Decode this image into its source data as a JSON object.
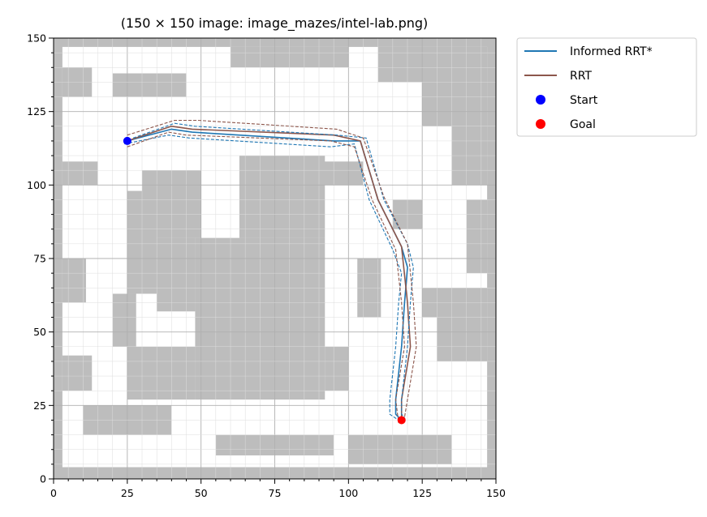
{
  "chart_data": {
    "type": "line",
    "title": "(150 × 150 image: image_mazes/intel-lab.png)",
    "xlim": [
      0,
      150
    ],
    "ylim": [
      0,
      150
    ],
    "x_ticks": [
      0,
      25,
      50,
      75,
      100,
      125,
      150
    ],
    "y_ticks": [
      0,
      25,
      50,
      75,
      100,
      125,
      150
    ],
    "grid": true,
    "legend_placement": "outside-top-right",
    "colors": {
      "informed": "#1f77b4",
      "rrt": "#8c564b",
      "start": "#0000ff",
      "goal": "#ff0000",
      "obstacle": "#bdbdbd",
      "free": "#ffffff"
    },
    "legend": [
      {
        "label": "Informed RRT*",
        "kind": "line",
        "color": "#1f77b4"
      },
      {
        "label": "RRT",
        "kind": "line",
        "color": "#8c564b"
      },
      {
        "label": "Start",
        "kind": "marker",
        "color": "#0000ff"
      },
      {
        "label": "Goal",
        "kind": "marker",
        "color": "#ff0000"
      }
    ],
    "start": {
      "x": 25,
      "y": 115
    },
    "goal": {
      "x": 118,
      "y": 20
    },
    "obstacles": [
      [
        0,
        0,
        3,
        150
      ],
      [
        147,
        0,
        3,
        150
      ],
      [
        0,
        0,
        150,
        4
      ],
      [
        0,
        147,
        150,
        3
      ],
      [
        48,
        27,
        44,
        55
      ],
      [
        63,
        82,
        29,
        28
      ],
      [
        25,
        63,
        10,
        35
      ],
      [
        30,
        82,
        20,
        23
      ],
      [
        35,
        57,
        13,
        25
      ],
      [
        20,
        45,
        8,
        18
      ],
      [
        25,
        27,
        23,
        18
      ],
      [
        85,
        100,
        20,
        8
      ],
      [
        125,
        55,
        22,
        10
      ],
      [
        130,
        40,
        17,
        15
      ],
      [
        125,
        120,
        22,
        27
      ],
      [
        135,
        100,
        12,
        20
      ],
      [
        100,
        5,
        35,
        10
      ],
      [
        55,
        8,
        40,
        7
      ],
      [
        10,
        15,
        30,
        10
      ],
      [
        3,
        100,
        12,
        8
      ],
      [
        3,
        60,
        8,
        15
      ],
      [
        115,
        85,
        10,
        10
      ],
      [
        60,
        140,
        40,
        7
      ],
      [
        20,
        130,
        25,
        8
      ],
      [
        92,
        30,
        8,
        15
      ],
      [
        3,
        130,
        10,
        10
      ],
      [
        110,
        135,
        15,
        12
      ],
      [
        103,
        55,
        8,
        20
      ],
      [
        140,
        70,
        7,
        25
      ],
      [
        3,
        30,
        10,
        12
      ]
    ],
    "series": [
      {
        "name": "Informed RRT*",
        "color": "#1f77b4",
        "style": "solid",
        "points": [
          [
            25,
            115
          ],
          [
            40,
            119
          ],
          [
            47,
            118
          ],
          [
            95,
            115
          ],
          [
            104,
            115
          ],
          [
            110,
            95
          ],
          [
            118,
            79
          ],
          [
            120,
            72
          ],
          [
            119,
            60
          ],
          [
            118,
            45
          ],
          [
            116,
            27
          ],
          [
            116,
            22
          ],
          [
            118,
            20
          ]
        ]
      },
      {
        "name": "RRT",
        "color": "#8c564b",
        "style": "solid",
        "points": [
          [
            25,
            115
          ],
          [
            40,
            120
          ],
          [
            47,
            119
          ],
          [
            95,
            117
          ],
          [
            104,
            115
          ],
          [
            110,
            95
          ],
          [
            118,
            79
          ],
          [
            120,
            60
          ],
          [
            121,
            45
          ],
          [
            118,
            27
          ],
          [
            118,
            20
          ]
        ]
      },
      {
        "style": "dashed",
        "color": "#1f77b4",
        "points": [
          [
            24,
            114
          ],
          [
            39,
            117
          ],
          [
            46,
            116
          ],
          [
            94,
            113
          ],
          [
            102,
            114
          ],
          [
            107,
            95
          ],
          [
            115,
            78
          ],
          [
            118,
            70
          ],
          [
            117,
            60
          ],
          [
            116,
            45
          ],
          [
            114,
            27
          ],
          [
            114,
            22
          ],
          [
            117,
            20
          ]
        ]
      },
      {
        "style": "dashed",
        "color": "#1f77b4",
        "points": [
          [
            27,
            116
          ],
          [
            41,
            121
          ],
          [
            48,
            120
          ],
          [
            96,
            117
          ],
          [
            106,
            116
          ],
          [
            112,
            95
          ],
          [
            120,
            80
          ],
          [
            122,
            72
          ],
          [
            121,
            60
          ],
          [
            120,
            45
          ],
          [
            118,
            27
          ],
          [
            118,
            22
          ],
          [
            119,
            21
          ]
        ]
      },
      {
        "style": "dashed",
        "color": "#8c564b",
        "points": [
          [
            25,
            117
          ],
          [
            41,
            122
          ],
          [
            49,
            122
          ],
          [
            96,
            119
          ],
          [
            105,
            116
          ],
          [
            112,
            96
          ],
          [
            120,
            80
          ],
          [
            122,
            60
          ],
          [
            123,
            45
          ],
          [
            120,
            27
          ],
          [
            119,
            21
          ]
        ]
      },
      {
        "style": "dashed",
        "color": "#8c564b",
        "points": [
          [
            25,
            113
          ],
          [
            39,
            118
          ],
          [
            45,
            117
          ],
          [
            94,
            115
          ],
          [
            102,
            113
          ],
          [
            108,
            95
          ],
          [
            116,
            78
          ],
          [
            118,
            60
          ],
          [
            119,
            45
          ],
          [
            116,
            27
          ],
          [
            117,
            19
          ]
        ]
      }
    ]
  }
}
